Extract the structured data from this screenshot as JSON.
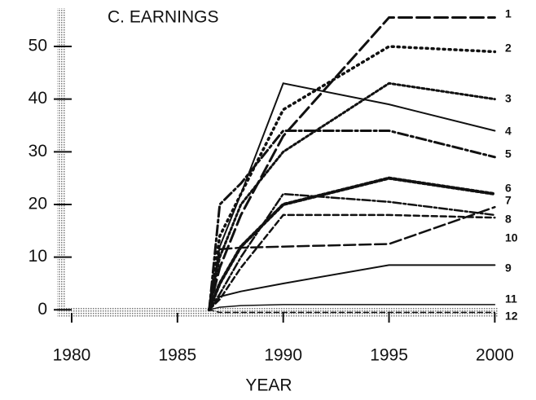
{
  "chart_data": {
    "type": "line",
    "title": "C. EARNINGS",
    "xlabel": "YEAR",
    "x": [
      1986.5,
      1987,
      1988,
      1990,
      1995,
      2000
    ],
    "xlim": [
      1979.5,
      2000.1
    ],
    "xticks": [
      1980,
      1985,
      1990,
      1995,
      2000
    ],
    "ylim": [
      -1.5,
      56.5
    ],
    "yticks": [
      0,
      10,
      20,
      30,
      40,
      50
    ],
    "series": [
      {
        "name": "1",
        "color": "#111",
        "values": [
          0,
          8,
          18,
          33,
          55.5,
          55.5
        ]
      },
      {
        "name": "2",
        "color": "#111",
        "values": [
          0,
          14,
          22,
          38,
          50,
          49
        ]
      },
      {
        "name": "3",
        "color": "#111",
        "values": [
          0,
          20,
          24,
          34,
          34,
          29
        ]
      },
      {
        "name": "4",
        "color": "#111",
        "values": [
          0,
          10,
          20,
          30,
          43,
          40
        ]
      },
      {
        "name": "5",
        "color": "#111",
        "values": [
          0,
          12,
          22,
          43,
          39,
          34
        ]
      },
      {
        "name": "6",
        "color": "#111",
        "values": [
          0,
          3,
          10,
          22,
          20.5,
          18
        ]
      },
      {
        "name": "7",
        "color": "#111",
        "values": [
          0,
          5,
          12,
          20,
          25,
          22
        ]
      },
      {
        "name": "8",
        "color": "#111",
        "values": [
          0,
          2,
          8,
          18,
          18,
          17.5
        ]
      },
      {
        "name": "9",
        "color": "#111",
        "values": [
          0,
          2.5,
          3.5,
          5,
          8.5,
          8.5
        ]
      },
      {
        "name": "10",
        "color": "#111",
        "values": [
          0,
          11.5,
          11.8,
          12,
          12.5,
          19.5
        ]
      },
      {
        "name": "11",
        "color": "#111",
        "values": [
          0,
          0.5,
          0.8,
          1,
          1,
          1
        ]
      },
      {
        "name": "12",
        "color": "#111",
        "values": [
          0,
          -0.5,
          -0.5,
          -0.5,
          -0.5,
          -0.5
        ]
      }
    ]
  }
}
